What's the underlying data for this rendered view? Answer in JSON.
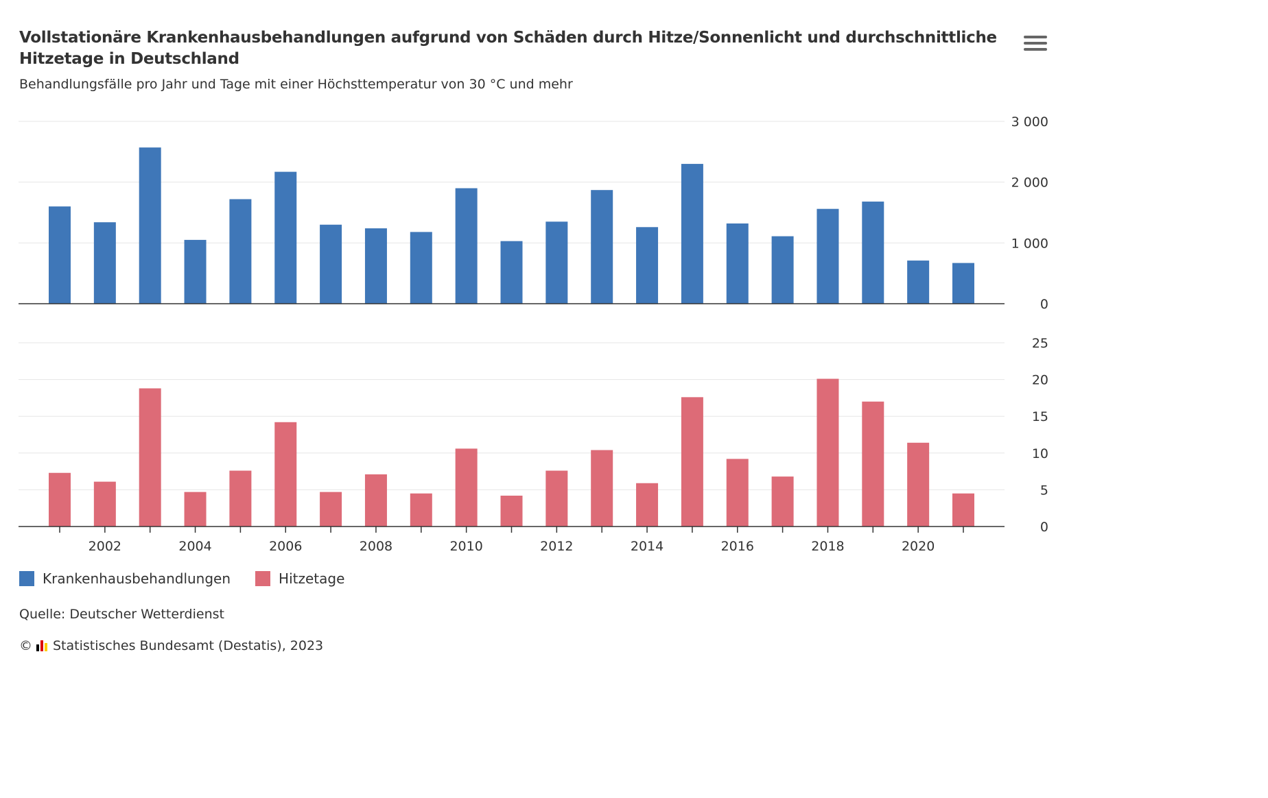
{
  "title": "Vollstationäre Krankenhausbehandlungen aufgrund von Schäden durch Hitze/Sonnenlicht und durchschnittliche Hitzetage in Deutschland",
  "subtitle": "Behandlungsfälle pro Jahr und Tage mit einer Höchsttemperatur von 30 °C und mehr",
  "menu_icon": "hamburger-menu-icon",
  "source": "Quelle: Deutscher Wetterdienst",
  "credits": {
    "copyright_symbol": "©",
    "text": "Statistisches Bundesamt (Destatis), 2023",
    "logo_colors": [
      "#000000",
      "#dd0000",
      "#ffcc00"
    ]
  },
  "colors": {
    "krankenhaus": "#3f77b8",
    "hitzetage": "#dd6b77",
    "grid": "#e6e6e6",
    "axis": "#333333"
  },
  "chart_data": {
    "type": "bar",
    "x": [
      2001,
      2002,
      2003,
      2004,
      2005,
      2006,
      2007,
      2008,
      2009,
      2010,
      2011,
      2012,
      2013,
      2014,
      2015,
      2016,
      2017,
      2018,
      2019,
      2020,
      2021
    ],
    "x_tick_labels": [
      "2002",
      "2004",
      "2006",
      "2008",
      "2010",
      "2012",
      "2014",
      "2016",
      "2018",
      "2020"
    ],
    "grid": true,
    "legend_position": "bottom-left",
    "series": [
      {
        "name": "Krankenhausbehandlungen",
        "values": [
          1600,
          1340,
          2570,
          1050,
          1720,
          2170,
          1300,
          1240,
          1180,
          1900,
          1030,
          1350,
          1870,
          1260,
          2300,
          1320,
          1110,
          1560,
          1680,
          710,
          670
        ],
        "ylim": [
          0,
          3000
        ],
        "y_tick_labels": [
          "0",
          "1 000",
          "2 000",
          "3 000"
        ],
        "y_ticks": [
          0,
          1000,
          2000,
          3000
        ]
      },
      {
        "name": "Hitzetage",
        "values": [
          7.3,
          6.1,
          18.8,
          4.7,
          7.6,
          14.2,
          4.7,
          7.1,
          4.5,
          10.6,
          4.2,
          7.6,
          10.4,
          5.9,
          17.6,
          9.2,
          6.8,
          20.1,
          17.0,
          11.4,
          4.5
        ],
        "ylim": [
          0,
          25
        ],
        "y_tick_labels": [
          "0",
          "5",
          "10",
          "15",
          "20",
          "25"
        ],
        "y_ticks": [
          0,
          5,
          10,
          15,
          20,
          25
        ]
      }
    ]
  }
}
